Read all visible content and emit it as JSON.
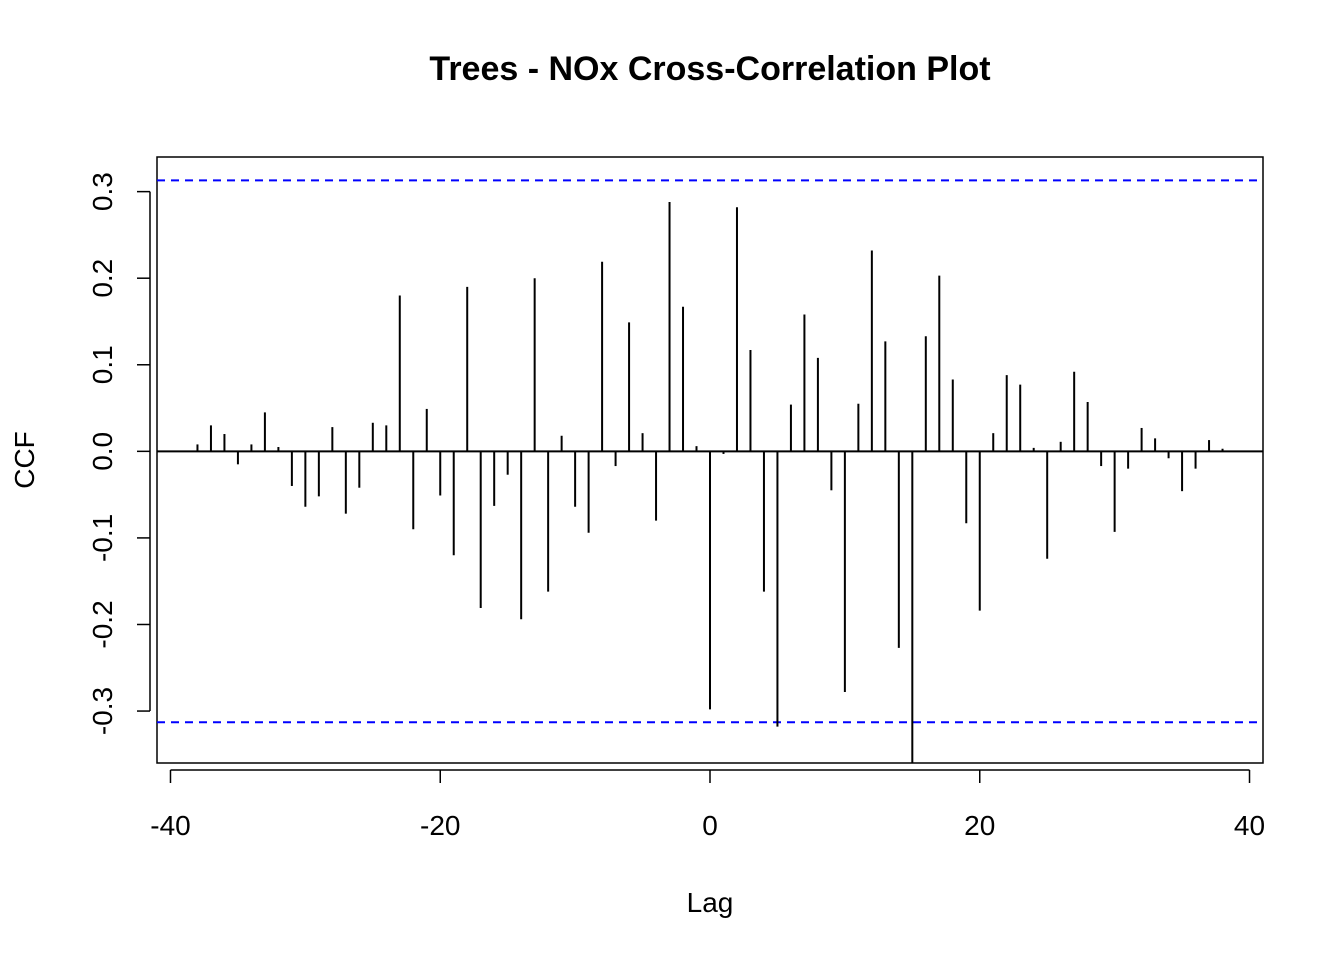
{
  "chart_data": {
    "type": "bar",
    "subtype": "cross-correlation stem plot",
    "title": "Trees - NOx Cross-Correlation Plot",
    "xlabel": "Lag",
    "ylabel": "CCF",
    "xlim": [
      -41,
      41
    ],
    "ylim": [
      -0.36,
      0.34
    ],
    "x_ticks": [
      -40,
      -20,
      0,
      20,
      40
    ],
    "x_tick_labels": [
      "-40",
      "-20",
      "0",
      "20",
      "40"
    ],
    "y_ticks": [
      -0.3,
      -0.2,
      -0.1,
      0.0,
      0.1,
      0.2,
      0.3
    ],
    "y_tick_labels": [
      "-0.3",
      "-0.2",
      "-0.1",
      "0.0",
      "0.1",
      "0.2",
      "0.3"
    ],
    "confidence_bounds": [
      0.313,
      -0.313
    ],
    "confidence_color": "#0000ff",
    "bar_color": "#000000",
    "grid": false,
    "lags": [
      -38,
      -37,
      -36,
      -35,
      -34,
      -33,
      -32,
      -31,
      -30,
      -29,
      -28,
      -27,
      -26,
      -25,
      -24,
      -23,
      -22,
      -21,
      -20,
      -19,
      -18,
      -17,
      -16,
      -15,
      -14,
      -13,
      -12,
      -11,
      -10,
      -9,
      -8,
      -7,
      -6,
      -5,
      -4,
      -3,
      -2,
      -1,
      0,
      1,
      2,
      3,
      4,
      5,
      6,
      7,
      8,
      9,
      10,
      11,
      12,
      13,
      14,
      15,
      16,
      17,
      18,
      19,
      20,
      21,
      22,
      23,
      24,
      25,
      26,
      27,
      28,
      29,
      30,
      31,
      32,
      33,
      34,
      35,
      36,
      37,
      38
    ],
    "values": [
      0.008,
      0.03,
      0.02,
      -0.015,
      0.008,
      0.045,
      0.005,
      -0.04,
      -0.064,
      -0.052,
      0.028,
      -0.072,
      -0.042,
      0.033,
      0.03,
      0.18,
      -0.09,
      0.049,
      -0.051,
      -0.12,
      0.19,
      -0.181,
      -0.063,
      -0.027,
      -0.194,
      0.2,
      -0.162,
      0.018,
      -0.064,
      -0.094,
      0.219,
      -0.017,
      0.149,
      0.021,
      -0.08,
      0.288,
      0.167,
      0.006,
      -0.298,
      -0.003,
      0.282,
      0.117,
      -0.162,
      -0.318,
      0.054,
      0.158,
      0.108,
      -0.045,
      -0.278,
      0.055,
      0.232,
      0.127,
      -0.227,
      -0.36,
      0.133,
      0.203,
      0.083,
      -0.083,
      -0.184,
      0.021,
      0.088,
      0.077,
      0.004,
      -0.124,
      0.011,
      0.092,
      0.057,
      -0.017,
      -0.093,
      -0.02,
      0.027,
      0.015,
      -0.008,
      -0.046,
      -0.02,
      0.013,
      0.003
    ]
  }
}
